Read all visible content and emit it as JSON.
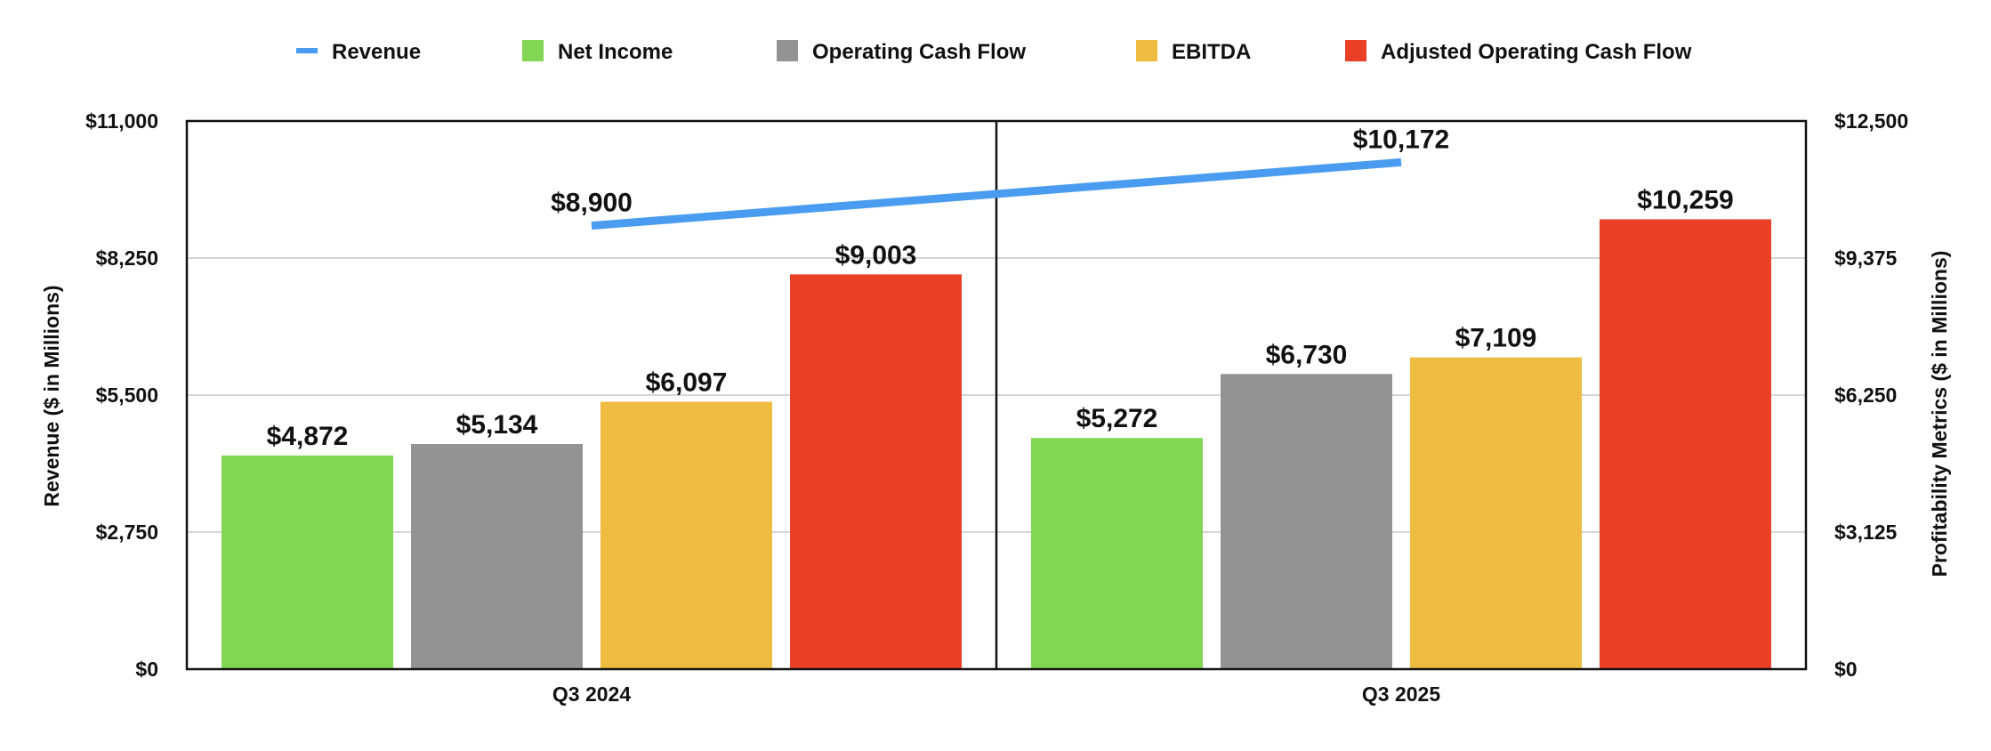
{
  "chart_data": {
    "type": "bar",
    "categories": [
      "Q3 2024",
      "Q3 2025"
    ],
    "series": [
      {
        "name": "Net Income",
        "kind": "bar",
        "axis": "right",
        "color": "#82d653",
        "values": [
          4872,
          5272
        ],
        "labels": [
          "$4,872",
          "$5,272"
        ]
      },
      {
        "name": "Operating Cash Flow",
        "kind": "bar",
        "axis": "right",
        "color": "#939393",
        "values": [
          5134,
          6730
        ],
        "labels": [
          "$5,134",
          "$6,730"
        ]
      },
      {
        "name": "EBITDA",
        "kind": "bar",
        "axis": "right",
        "color": "#eebc40",
        "values": [
          6097,
          7109
        ],
        "labels": [
          "$6,097",
          "$7,109"
        ]
      },
      {
        "name": "Adjusted Operating Cash Flow",
        "kind": "bar",
        "axis": "right",
        "color": "#e94027",
        "values": [
          9003,
          10259
        ],
        "labels": [
          "$9,003",
          "$10,259"
        ]
      }
    ],
    "line_series": {
      "name": "Revenue",
      "kind": "line",
      "axis": "left",
      "color": "#4a9cf0",
      "values": [
        8900,
        10172
      ],
      "labels": [
        "$8,900",
        "$10,172"
      ]
    },
    "legend_order": [
      "Revenue",
      "Net Income",
      "Operating Cash Flow",
      "EBITDA",
      "Adjusted Operating Cash Flow"
    ],
    "ylabel_left": "Revenue ($ in Millions)",
    "ylabel_right": "Profitability Metrics ($ in Millions)",
    "ylim_left": [
      0,
      11000
    ],
    "ylim_right": [
      0,
      12500
    ],
    "yticks_left": [
      "$0",
      "$2,750",
      "$5,500",
      "$8,250",
      "$11,000"
    ],
    "yticks_right": [
      "$0",
      "$3,125",
      "$6,250",
      "$9,375",
      "$12,500"
    ],
    "grid": true,
    "legend_position": "top"
  }
}
